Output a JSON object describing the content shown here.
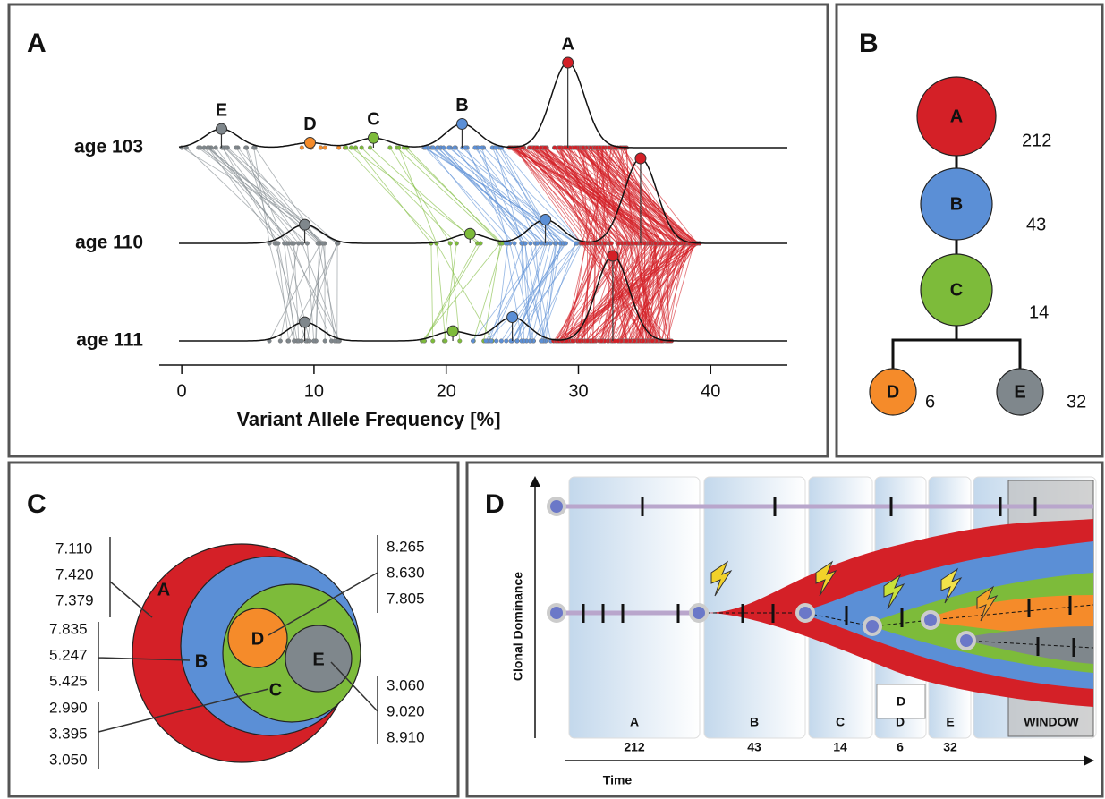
{
  "panel_a": {
    "label": "A",
    "rows": [
      "age 103",
      "age 110",
      "age 111"
    ],
    "xlabel": "Variant Allele Frequency [%]",
    "xlim": [
      -1.7,
      45.8
    ],
    "xticks": [
      0,
      10,
      20,
      30,
      40
    ],
    "clones": [
      {
        "name": "E",
        "vaf": [
          3,
          9.3,
          9.3
        ]
      },
      {
        "name": "D",
        "vaf": [
          9.7,
          null,
          null
        ]
      },
      {
        "name": "C",
        "vaf": [
          14.5,
          21.8,
          20.5
        ]
      },
      {
        "name": "B",
        "vaf": [
          21.2,
          27.5,
          25
        ]
      },
      {
        "name": "A",
        "vaf": [
          29.2,
          34.7,
          32.6
        ]
      }
    ]
  },
  "panel_b": {
    "label": "B",
    "nodes": [
      {
        "name": "A",
        "count": 212,
        "color": "#d42027"
      },
      {
        "name": "B",
        "count": 43,
        "color": "#5b8fd6"
      },
      {
        "name": "C",
        "count": 14,
        "color": "#7dbb3a"
      },
      {
        "name": "D",
        "count": 6,
        "color": "#f58b2a"
      },
      {
        "name": "E",
        "count": 32,
        "color": "#7f878c"
      }
    ]
  },
  "panel_c": {
    "label": "C",
    "circles": [
      {
        "name": "A",
        "values": [
          "7.110",
          "7.420",
          "7.379"
        ]
      },
      {
        "name": "B",
        "values": [
          "7.835",
          "5.247",
          "5.425"
        ]
      },
      {
        "name": "C",
        "values": [
          "2.990",
          "3.395",
          "3.050"
        ]
      },
      {
        "name": "D",
        "values": [
          "8.265",
          "8.630",
          "7.805"
        ]
      },
      {
        "name": "E",
        "values": [
          "3.060",
          "9.020",
          "8.910"
        ]
      }
    ]
  },
  "panel_d": {
    "label": "D",
    "ylabel": "Clonal Dominance",
    "xlabel": "Time",
    "inset": "D",
    "window": "WINDOW",
    "phases": [
      {
        "name": "A",
        "count": 212
      },
      {
        "name": "B",
        "count": 43
      },
      {
        "name": "C",
        "count": 14
      },
      {
        "name": "D",
        "count": 6
      },
      {
        "name": "E",
        "count": 32
      }
    ]
  }
}
